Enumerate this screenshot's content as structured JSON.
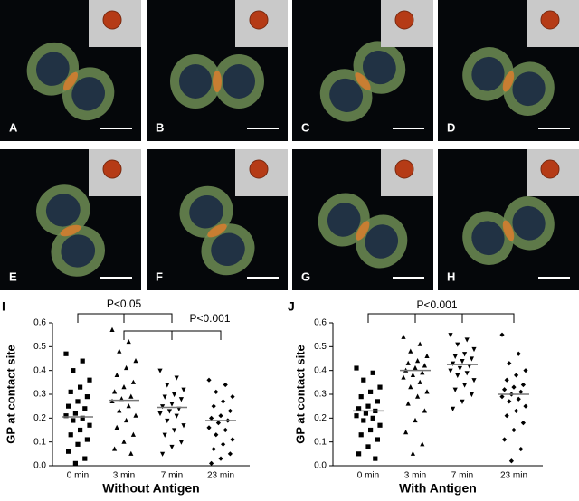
{
  "panels": [
    "A",
    "B",
    "C",
    "D",
    "E",
    "F",
    "G",
    "H"
  ],
  "chart_data": [
    {
      "type": "dot",
      "label": "I",
      "ylabel": "GP at contact site",
      "xlabel": "Without Antigen",
      "categories": [
        "0 min",
        "3 min",
        "7 min",
        "23 min"
      ],
      "markers": [
        "square",
        "triangle",
        "triangle-down",
        "diamond"
      ],
      "groups": [
        [
          0.47,
          0.44,
          0.4,
          0.36,
          0.33,
          0.31,
          0.29,
          0.27,
          0.25,
          0.24,
          0.22,
          0.21,
          0.2,
          0.19,
          0.17,
          0.15,
          0.13,
          0.11,
          0.09,
          0.06,
          0.03,
          0.01
        ],
        [
          0.57,
          0.52,
          0.48,
          0.44,
          0.41,
          0.38,
          0.35,
          0.33,
          0.31,
          0.29,
          0.28,
          0.27,
          0.25,
          0.23,
          0.21,
          0.19,
          0.16,
          0.13,
          0.1,
          0.07,
          0.05
        ],
        [
          0.4,
          0.37,
          0.34,
          0.32,
          0.3,
          0.29,
          0.28,
          0.26,
          0.25,
          0.24,
          0.23,
          0.22,
          0.21,
          0.19,
          0.17,
          0.15,
          0.13,
          0.1,
          0.08,
          0.05
        ],
        [
          0.36,
          0.34,
          0.31,
          0.29,
          0.27,
          0.25,
          0.23,
          0.21,
          0.2,
          0.19,
          0.18,
          0.16,
          0.15,
          0.13,
          0.11,
          0.09,
          0.07,
          0.05,
          0.03,
          0.01
        ]
      ],
      "means": [
        0.205,
        0.275,
        0.245,
        0.19
      ],
      "annotations": [
        "P<0.05",
        "P<0.001"
      ],
      "ylim": [
        0,
        0.6
      ],
      "yticks": [
        {
          "value": 0,
          "label": "0.0"
        },
        0.1,
        0.2,
        0.3,
        0.4,
        0.5,
        0.6
      ]
    },
    {
      "type": "dot",
      "label": "J",
      "ylabel": "GP at contact site",
      "xlabel": "With Antigen",
      "categories": [
        "0 min",
        "3 min",
        "7 min",
        "23 min"
      ],
      "markers": [
        "square",
        "triangle",
        "triangle-down",
        "diamond"
      ],
      "groups": [
        [
          0.41,
          0.39,
          0.36,
          0.33,
          0.31,
          0.29,
          0.27,
          0.25,
          0.24,
          0.23,
          0.22,
          0.21,
          0.2,
          0.19,
          0.17,
          0.15,
          0.13,
          0.11,
          0.08,
          0.05,
          0.03
        ],
        [
          0.54,
          0.51,
          0.48,
          0.46,
          0.44,
          0.43,
          0.42,
          0.41,
          0.4,
          0.39,
          0.38,
          0.37,
          0.35,
          0.33,
          0.31,
          0.29,
          0.26,
          0.23,
          0.19,
          0.14,
          0.09,
          0.05
        ],
        [
          0.55,
          0.53,
          0.51,
          0.49,
          0.47,
          0.46,
          0.45,
          0.44,
          0.43,
          0.42,
          0.41,
          0.4,
          0.39,
          0.38,
          0.36,
          0.34,
          0.32,
          0.3,
          0.27,
          0.24
        ],
        [
          0.55,
          0.47,
          0.43,
          0.4,
          0.38,
          0.36,
          0.34,
          0.33,
          0.32,
          0.31,
          0.3,
          0.29,
          0.28,
          0.27,
          0.25,
          0.23,
          0.21,
          0.18,
          0.15,
          0.11,
          0.07,
          0.02
        ]
      ],
      "means": [
        0.23,
        0.4,
        0.425,
        0.3
      ],
      "annotations": [
        "P<0.001"
      ],
      "ylim": [
        0,
        0.6
      ],
      "yticks": [
        {
          "value": 0,
          "label": "0.0"
        },
        0.1,
        0.2,
        0.3,
        0.4,
        0.5,
        0.6
      ]
    }
  ]
}
